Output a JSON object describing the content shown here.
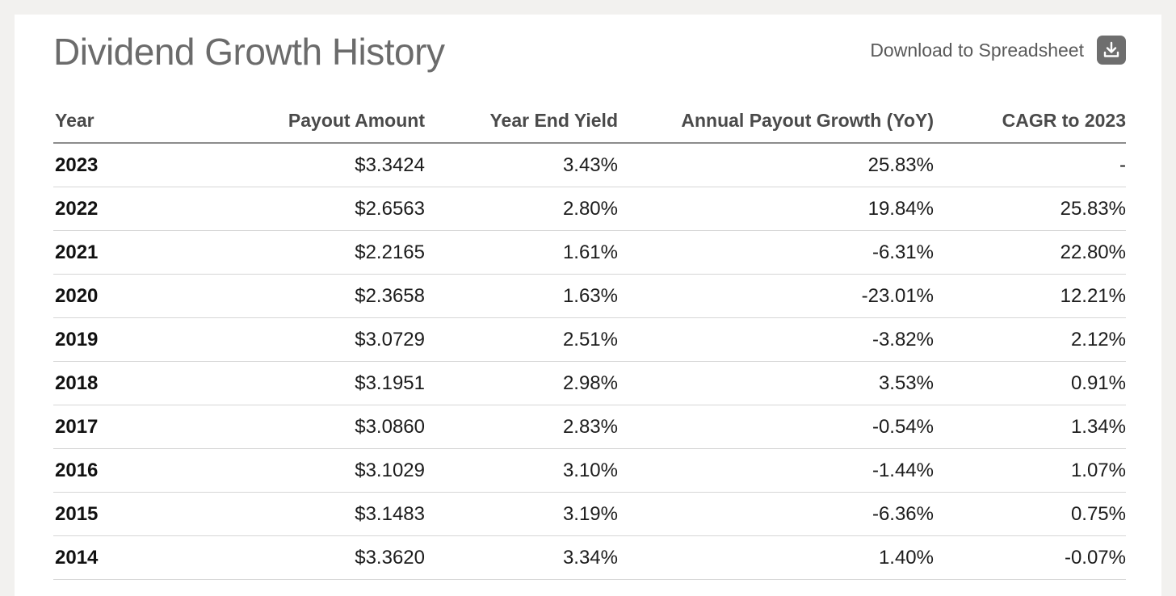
{
  "header": {
    "title": "Dividend Growth History",
    "download_label": "Download to Spreadsheet",
    "download_icon": "download-icon"
  },
  "table": {
    "columns": [
      "Year",
      "Payout Amount",
      "Year End Yield",
      "Annual Payout Growth (YoY)",
      "CAGR to 2023"
    ],
    "rows": [
      [
        "2023",
        "$3.3424",
        "3.43%",
        "25.83%",
        "-"
      ],
      [
        "2022",
        "$2.6563",
        "2.80%",
        "19.84%",
        "25.83%"
      ],
      [
        "2021",
        "$2.2165",
        "1.61%",
        "-6.31%",
        "22.80%"
      ],
      [
        "2020",
        "$2.3658",
        "1.63%",
        "-23.01%",
        "12.21%"
      ],
      [
        "2019",
        "$3.0729",
        "2.51%",
        "-3.82%",
        "2.12%"
      ],
      [
        "2018",
        "$3.1951",
        "2.98%",
        "3.53%",
        "0.91%"
      ],
      [
        "2017",
        "$3.0860",
        "2.83%",
        "-0.54%",
        "1.34%"
      ],
      [
        "2016",
        "$3.1029",
        "3.10%",
        "-1.44%",
        "1.07%"
      ],
      [
        "2015",
        "$3.1483",
        "3.19%",
        "-6.36%",
        "0.75%"
      ],
      [
        "2014",
        "$3.3620",
        "3.34%",
        "1.40%",
        "-0.07%"
      ]
    ]
  },
  "colors": {
    "page_background": "#f2f1ef",
    "card_background": "#ffffff",
    "title_text": "#6b6b6b",
    "icon_background": "#6e6e6e"
  }
}
